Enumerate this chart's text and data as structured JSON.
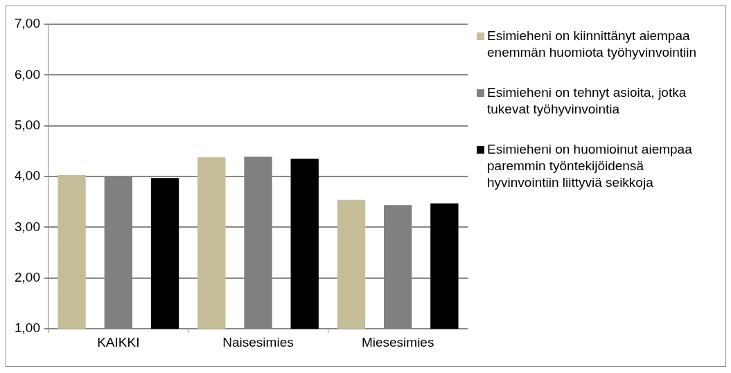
{
  "chart_data": {
    "type": "bar",
    "categories": [
      "KAIKKI",
      "Naisesimies",
      "Miesesimies"
    ],
    "series": [
      {
        "name": "Esimieheni on kiinnittänyt aiempaa enemmän huomiota työhyvinvointiin",
        "color": "#c4bd97",
        "values": [
          4.03,
          4.38,
          3.54
        ]
      },
      {
        "name": "Esimieheni on tehnyt asioita, jotka tukevat työhyvinvointia",
        "color": "#808080",
        "values": [
          4.0,
          4.39,
          3.44
        ]
      },
      {
        "name": "Esimieheni on huomioinut aiempaa paremmin työntekijöidensä hyvinvointiin liittyviä seikkoja",
        "color": "#000000",
        "values": [
          3.97,
          4.35,
          3.47
        ]
      }
    ],
    "ylim": [
      1,
      7
    ],
    "yticks": [
      {
        "value": 1,
        "label": "1,00"
      },
      {
        "value": 2,
        "label": "2,00"
      },
      {
        "value": 3,
        "label": "3,00"
      },
      {
        "value": 4,
        "label": "4,00"
      },
      {
        "value": 5,
        "label": "5,00"
      },
      {
        "value": 6,
        "label": "6,00"
      },
      {
        "value": 7,
        "label": "7,00"
      }
    ],
    "grid": "y",
    "legend": "right"
  }
}
